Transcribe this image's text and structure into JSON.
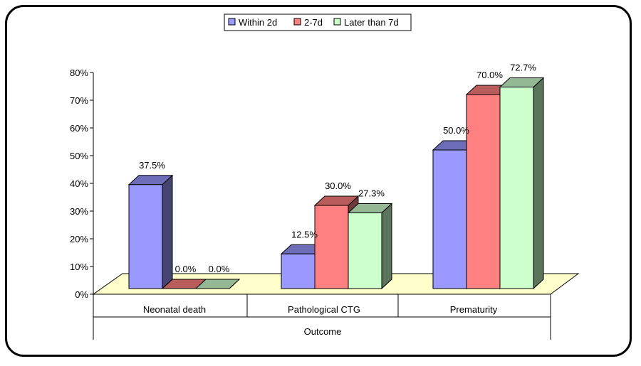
{
  "chart_data": {
    "type": "bar",
    "subtype": "3d-clustered",
    "categories": [
      "Neonatal death",
      "Pathological CTG",
      "Prematurity"
    ],
    "xlabel": "Outcome",
    "ylabel": "",
    "ylim": [
      0,
      80
    ],
    "y_ticks": [
      "0%",
      "10%",
      "20%",
      "30%",
      "40%",
      "50%",
      "60%",
      "70%",
      "80%"
    ],
    "legend_position": "top",
    "series": [
      {
        "name": "Within 2d",
        "values": [
          37.5,
          12.5,
          50.0
        ],
        "labels": [
          "37.5%",
          "12.5%",
          "50.0%"
        ],
        "color": "#9999ff"
      },
      {
        "name": "2-7d",
        "values": [
          0.0,
          30.0,
          70.0
        ],
        "labels": [
          "0.0%",
          "30.0%",
          "70.0%"
        ],
        "color": "#ff8080"
      },
      {
        "name": "Later than 7d",
        "values": [
          0.0,
          27.3,
          72.7
        ],
        "labels": [
          "0.0%",
          "27.3%",
          "72.7%"
        ],
        "color": "#ccffcc"
      }
    ]
  }
}
